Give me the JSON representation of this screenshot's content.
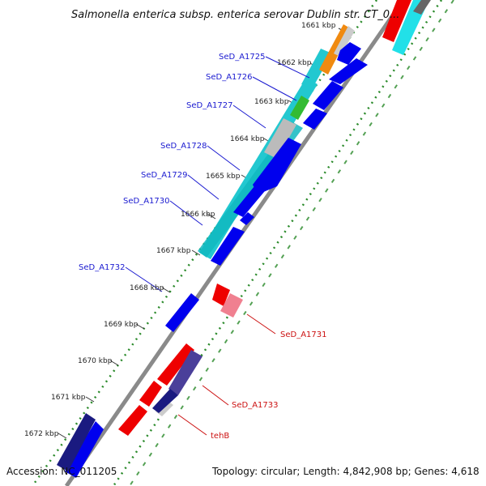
{
  "title": "Salmonella enterica subsp. enterica serovar Dublin str. CT_0...",
  "footer": {
    "accession": "Accession: NC_011205",
    "topology": "Topology: circular; Length: 4,842,908 bp; Genes: 4,618"
  },
  "kbp_labels": [
    "1661 kbp",
    "1662 kbp",
    "1663 kbp",
    "1664 kbp",
    "1665 kbp",
    "1666 kbp",
    "1667 kbp",
    "1668 kbp",
    "1669 kbp",
    "1670 kbp",
    "1671 kbp",
    "1672 kbp"
  ],
  "gene_labels": {
    "a1725": "SeD_A1725",
    "a1726": "SeD_A1726",
    "a1727": "SeD_A1727",
    "a1728": "SeD_A1728",
    "a1729": "SeD_A1729",
    "a1730": "SeD_A1730",
    "a1732": "SeD_A1732",
    "a1731": "SeD_A1731",
    "a1733": "SeD_A1733",
    "tehb": "tehB"
  },
  "colors": {
    "forward": "#0000ee",
    "reverse": "#ee0000",
    "cyan": "#22c8d0",
    "orange": "#f08a10",
    "green": "#33bb33",
    "gray": "#bbbbbb",
    "navy": "#1a1a80",
    "dark_slate": "#4a3f9a",
    "pink": "#f08090",
    "backbone": "#8a8a8a",
    "dots": "#2a8a2a"
  }
}
